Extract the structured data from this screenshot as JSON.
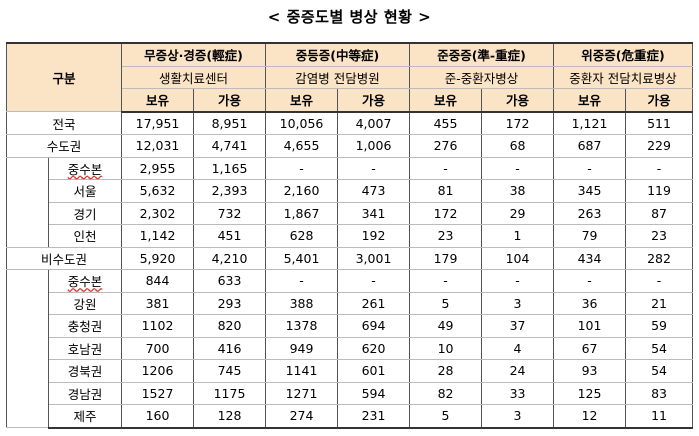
{
  "title": "< 중증도별 병상 현황 >",
  "header": {
    "gubun": "구분",
    "groups": [
      {
        "name": "무증상·경증(輕症)",
        "sub": "생활치료센터"
      },
      {
        "name": "중등증(中等症)",
        "sub": "감염병 전담병원"
      },
      {
        "name": "준중증(準-重症)",
        "sub": "준-중환자병상"
      },
      {
        "name": "위중증(危重症)",
        "sub": "중환자 전담치료병상"
      }
    ],
    "cols": [
      "보유",
      "가용",
      "보유",
      "가용",
      "보유",
      "가용",
      "보유",
      "가용"
    ]
  },
  "rows": [
    {
      "name": "전국",
      "values": [
        "17,951",
        "8,951",
        "10,056",
        "4,007",
        "455",
        "172",
        "1,121",
        "511"
      ]
    },
    {
      "name": "수도권",
      "values": [
        "12,031",
        "4,741",
        "4,655",
        "1,006",
        "276",
        "68",
        "687",
        "229"
      ]
    },
    {
      "name": "중수본",
      "values": [
        "2,955",
        "1,165",
        "-",
        "-",
        "-",
        "-",
        "-",
        "-"
      ]
    },
    {
      "name": "서울",
      "values": [
        "5,632",
        "2,393",
        "2,160",
        "473",
        "81",
        "38",
        "345",
        "119"
      ]
    },
    {
      "name": "경기",
      "values": [
        "2,302",
        "732",
        "1,867",
        "341",
        "172",
        "29",
        "263",
        "87"
      ]
    },
    {
      "name": "인천",
      "values": [
        "1,142",
        "451",
        "628",
        "192",
        "23",
        "1",
        "79",
        "23"
      ]
    },
    {
      "name": "비수도권",
      "values": [
        "5,920",
        "4,210",
        "5,401",
        "3,001",
        "179",
        "104",
        "434",
        "282"
      ]
    },
    {
      "name": "중수본",
      "values": [
        "844",
        "633",
        "-",
        "-",
        "-",
        "-",
        "-",
        "-"
      ]
    },
    {
      "name": "강원",
      "values": [
        "381",
        "293",
        "388",
        "261",
        "5",
        "3",
        "36",
        "21"
      ]
    },
    {
      "name": "충청권",
      "values": [
        "1102",
        "820",
        "1378",
        "694",
        "49",
        "37",
        "101",
        "59"
      ]
    },
    {
      "name": "호남권",
      "values": [
        "700",
        "416",
        "949",
        "620",
        "10",
        "4",
        "67",
        "54"
      ]
    },
    {
      "name": "경북권",
      "values": [
        "1206",
        "745",
        "1141",
        "601",
        "28",
        "24",
        "93",
        "54"
      ]
    },
    {
      "name": "경남권",
      "values": [
        "1527",
        "1175",
        "1271",
        "594",
        "82",
        "33",
        "125",
        "83"
      ]
    },
    {
      "name": "제주",
      "values": [
        "160",
        "128",
        "274",
        "231",
        "5",
        "3",
        "12",
        "11"
      ]
    }
  ]
}
